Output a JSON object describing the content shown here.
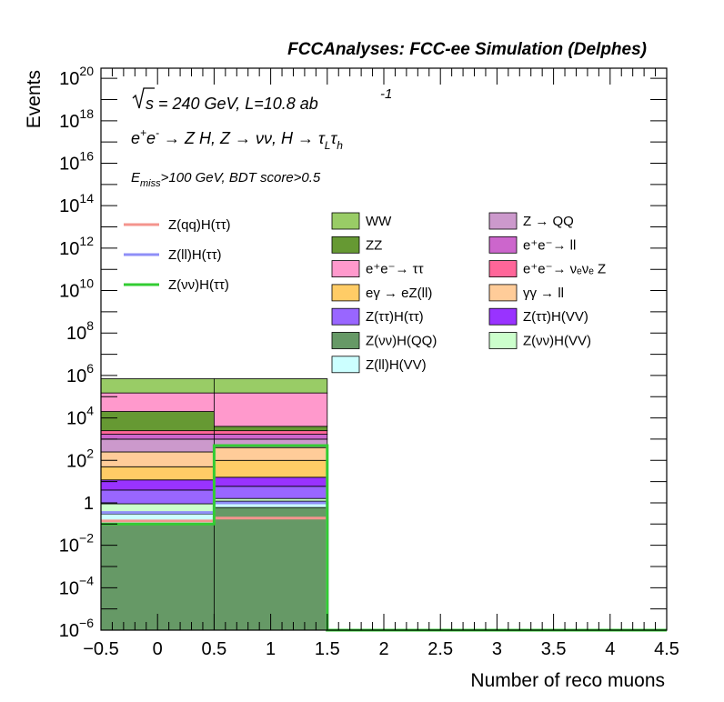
{
  "header": {
    "title": "FCCAnalyses: FCC-ee Simulation (Delphes)"
  },
  "annotations": {
    "line1": "√s = 240 GeV, L=10.8 ab⁻¹",
    "line2": "e⁺e⁻ → Z H, Z → νν, H → τ_L τ_h",
    "line3": "E_miss>100 GeV, BDT score>0.5"
  },
  "legend": {
    "signals": [
      {
        "label": "Z(qq)H(ττ)",
        "color": "#f4948e"
      },
      {
        "label": "Z(ll)H(ττ)",
        "color": "#8f8ff7"
      },
      {
        "label": "Z(νν)H(ττ)",
        "color": "#33cc33"
      }
    ],
    "backgrounds": [
      {
        "label": "WW",
        "color": "#99cc66"
      },
      {
        "label": "Z → QQ",
        "color": "#cc99cc"
      },
      {
        "label": "ZZ",
        "color": "#669933"
      },
      {
        "label": "e⁺e⁻→ ll",
        "color": "#cc66cc"
      },
      {
        "label": "e⁺e⁻→ ττ",
        "color": "#ff99cc"
      },
      {
        "label": "e⁺e⁻→ νₑνₑ Z",
        "color": "#ff6699"
      },
      {
        "label": "eγ → eZ(ll)",
        "color": "#ffcc66"
      },
      {
        "label": "γγ → ll",
        "color": "#ffcc99"
      },
      {
        "label": "Z(ττ)H(ττ)",
        "color": "#9966ff"
      },
      {
        "label": "Z(ττ)H(VV)",
        "color": "#9933ff"
      },
      {
        "label": "Z(νν)H(QQ)",
        "color": "#669966"
      },
      {
        "label": "Z(νν)H(VV)",
        "color": "#ccffcc"
      },
      {
        "label": "Z(ll)H(VV)",
        "color": "#ccffff"
      }
    ]
  },
  "chart_data": {
    "type": "bar",
    "title": "FCCAnalyses: FCC-ee Simulation (Delphes)",
    "xlabel": "Number of reco muons",
    "ylabel": "Events",
    "xlim": [
      -0.5,
      4.5
    ],
    "ylim": [
      1e-06,
      3e+20
    ],
    "yscale": "log",
    "grid": false,
    "legend_placement": "top",
    "bin_edges": [
      -0.5,
      0.5,
      1.5,
      2.5,
      3.5,
      4.5
    ],
    "x_ticks": [
      "−0.5",
      "0",
      "0.5",
      "1",
      "1.5",
      "2",
      "2.5",
      "3",
      "3.5",
      "4",
      "4.5"
    ],
    "y_ticks": [
      {
        "value": 1e-06,
        "base": "10",
        "exp": "−6"
      },
      {
        "value": 0.0001,
        "base": "10",
        "exp": "−4"
      },
      {
        "value": 0.01,
        "base": "10",
        "exp": "−2"
      },
      {
        "value": 1,
        "base": "1",
        "exp": ""
      },
      {
        "value": 100.0,
        "base": "10",
        "exp": "2"
      },
      {
        "value": 10000.0,
        "base": "10",
        "exp": "4"
      },
      {
        "value": 1000000.0,
        "base": "10",
        "exp": "6"
      },
      {
        "value": 100000000.0,
        "base": "10",
        "exp": "8"
      },
      {
        "value": 10000000000.0,
        "base": "10",
        "exp": "10"
      },
      {
        "value": 1000000000000.0,
        "base": "10",
        "exp": "12"
      },
      {
        "value": 100000000000000.0,
        "base": "10",
        "exp": "14"
      },
      {
        "value": 1e+16,
        "base": "10",
        "exp": "16"
      },
      {
        "value": 1e+18,
        "base": "10",
        "exp": "18"
      },
      {
        "value": 1e+20,
        "base": "10",
        "exp": "20"
      }
    ],
    "stack_bins": [
      {
        "x": [
          -0.5,
          0.5
        ],
        "layers": [
          {
            "name": "Z(νν)H(QQ)",
            "color": "#669966",
            "top": 0.1
          },
          {
            "name": "Z(ll)H(VV)",
            "color": "#ccffff",
            "top": 0.3
          },
          {
            "name": "Z(νν)H(VV)",
            "color": "#ccffcc",
            "top": 0.9
          },
          {
            "name": "Z(ττ)H(ττ)",
            "color": "#9966ff",
            "top": 4
          },
          {
            "name": "Z(ττ)H(VV)",
            "color": "#9933ff",
            "top": 12
          },
          {
            "name": "eγ → eZ(ll)",
            "color": "#ffcc66",
            "top": 50
          },
          {
            "name": "γγ → ll",
            "color": "#ffcc99",
            "top": 250
          },
          {
            "name": "Z → QQ",
            "color": "#cc99cc",
            "top": 1000
          },
          {
            "name": "e⁺e⁻→ ll",
            "color": "#cc66cc",
            "top": 1700
          },
          {
            "name": "e⁺e⁻→ νₑνₑ Z",
            "color": "#ff6699",
            "top": 2500
          },
          {
            "name": "ZZ",
            "color": "#669933",
            "top": 20000
          },
          {
            "name": "e⁺e⁻→ ττ",
            "color": "#ff99cc",
            "top": 150000
          },
          {
            "name": "WW",
            "color": "#99cc66",
            "top": 700000
          }
        ]
      },
      {
        "x": [
          0.5,
          1.5
        ],
        "layers": [
          {
            "name": "Z(νν)H(QQ)",
            "color": "#669966",
            "top": 0.6
          },
          {
            "name": "Z(ll)H(VV)",
            "color": "#ccffff",
            "top": 1.2
          },
          {
            "name": "Z(νν)H(VV)",
            "color": "#ccffcc",
            "top": 1.6
          },
          {
            "name": "Z(ττ)H(ττ)",
            "color": "#9966ff",
            "top": 6
          },
          {
            "name": "Z(ττ)H(VV)",
            "color": "#9933ff",
            "top": 16
          },
          {
            "name": "eγ → eZ(ll)",
            "color": "#ffcc66",
            "top": 100
          },
          {
            "name": "γγ → ll",
            "color": "#ffcc99",
            "top": 400
          },
          {
            "name": "Z → QQ",
            "color": "#cc99cc",
            "top": 1000
          },
          {
            "name": "e⁺e⁻→ ll",
            "color": "#cc66cc",
            "top": 1700
          },
          {
            "name": "e⁺e⁻→ νₑνₑ Z",
            "color": "#ff6699",
            "top": 2500
          },
          {
            "name": "ZZ",
            "color": "#669933",
            "top": 4000
          },
          {
            "name": "e⁺e⁻→ ττ",
            "color": "#ff99cc",
            "top": 150000
          },
          {
            "name": "WW",
            "color": "#99cc66",
            "top": 700000
          }
        ]
      }
    ],
    "signal_lines": [
      {
        "name": "Z(qq)H(ττ)",
        "color": "#f4948e",
        "values": [
          0.14,
          0.19,
          0,
          0,
          0
        ]
      },
      {
        "name": "Z(ll)H(ττ)",
        "color": "#8f8ff7",
        "values": [
          0.35,
          1.0,
          0,
          0,
          0
        ]
      },
      {
        "name": "Z(νν)H(ττ)",
        "color": "#33cc33",
        "values": [
          0.1,
          500,
          0,
          0,
          0
        ]
      }
    ]
  }
}
